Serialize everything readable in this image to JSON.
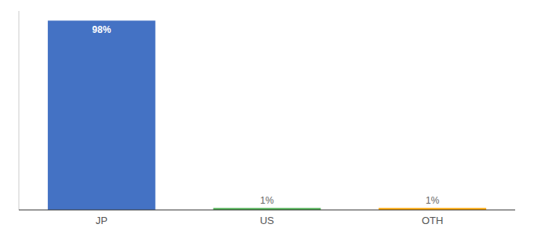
{
  "chart_data": {
    "type": "bar",
    "categories": [
      "JP",
      "US",
      "OTH"
    ],
    "values": [
      98,
      1,
      1
    ],
    "value_labels": [
      "98%",
      "1%",
      "1%"
    ],
    "colors": [
      "#4472C4",
      "#4CAF50",
      "#FFA500"
    ],
    "ylim": [
      0,
      103
    ],
    "data_labels": true,
    "tick_labels": "x",
    "grid": false
  }
}
